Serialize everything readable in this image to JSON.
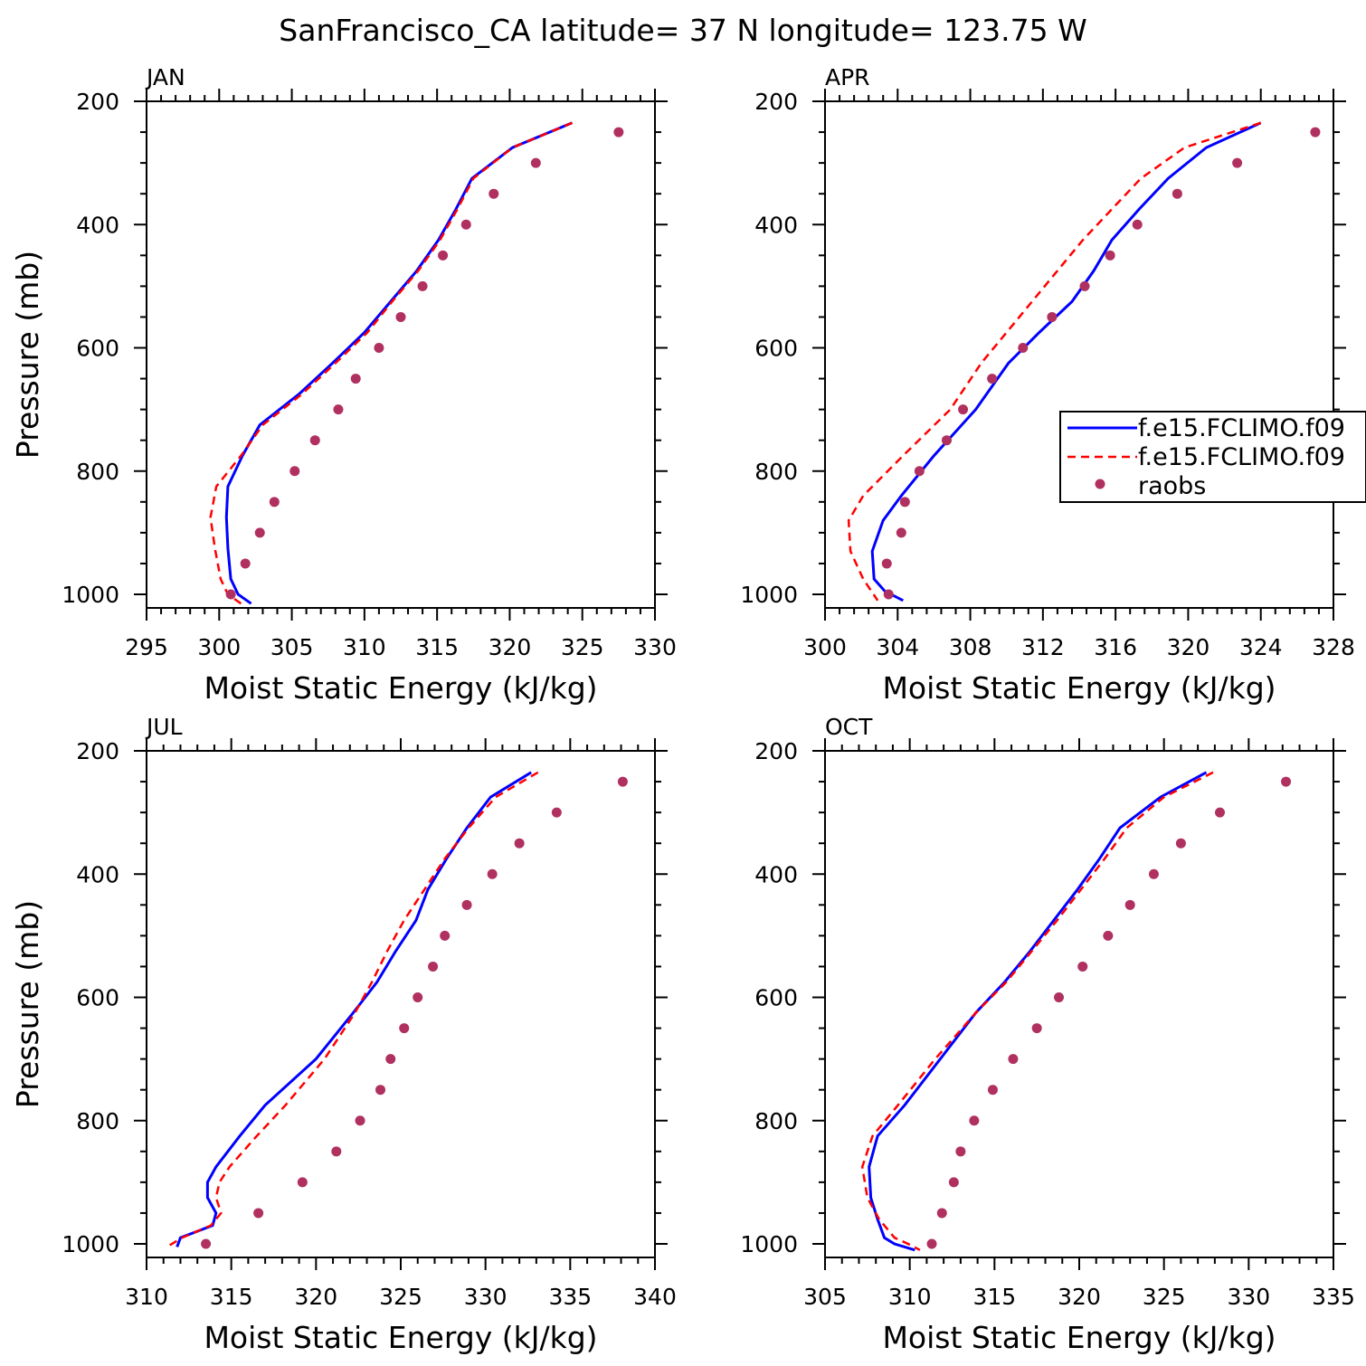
{
  "title": "SanFrancisco_CA  latitude= 37 N longitude= 123.75 W",
  "colors": {
    "model1": "#0000ff",
    "model2": "#ff0000",
    "raobs": "#b03060"
  },
  "legend": {
    "entries": [
      "f.e15.FCLIMO.f09",
      "f.e15.FCLIMO.f09",
      "raobs"
    ]
  },
  "chart_data": [
    {
      "type": "line",
      "title": "JAN",
      "xlabel": "Moist Static Energy (kJ/kg)",
      "ylabel": "Pressure (mb)",
      "xlim": [
        295,
        330
      ],
      "ylim": [
        1025,
        200
      ],
      "xticks": [
        295,
        300,
        305,
        310,
        315,
        320,
        325,
        330
      ],
      "yticks": [
        1000,
        800,
        600,
        400,
        200
      ],
      "series": [
        {
          "name": "f.e15.FCLIMO.f09",
          "style": "solid",
          "x": [
            324.3,
            320.2,
            317.4,
            316.3,
            315.1,
            313.6,
            311.8,
            310.0,
            307.8,
            305.5,
            302.8,
            301.6,
            300.6,
            300.5,
            300.6,
            300.8,
            301.3,
            302.2
          ],
          "y": [
            235,
            275,
            325,
            375,
            425,
            475,
            525,
            575,
            625,
            675,
            725,
            775,
            825,
            875,
            925,
            975,
            1000,
            1015
          ]
        },
        {
          "name": "f.e15.FCLIMO.f09",
          "style": "dashed",
          "x": [
            324.3,
            320.2,
            317.5,
            316.4,
            315.2,
            313.7,
            311.9,
            310.2,
            308.0,
            305.7,
            303.0,
            301.5,
            299.8,
            299.4,
            299.7,
            300.1,
            300.6,
            301.5
          ],
          "y": [
            235,
            275,
            325,
            375,
            425,
            475,
            525,
            575,
            625,
            675,
            725,
            775,
            825,
            875,
            925,
            975,
            1000,
            1015
          ]
        },
        {
          "name": "raobs",
          "style": "markers",
          "x": [
            327.5,
            321.8,
            318.9,
            317.0,
            315.4,
            314.0,
            312.5,
            311.0,
            309.4,
            308.2,
            306.6,
            305.2,
            303.8,
            302.8,
            301.8,
            300.8
          ],
          "y": [
            250,
            300,
            350,
            400,
            450,
            500,
            550,
            600,
            650,
            700,
            750,
            800,
            850,
            900,
            950,
            1000
          ]
        }
      ]
    },
    {
      "type": "line",
      "title": "APR",
      "xlabel": "Moist Static Energy (kJ/kg)",
      "ylabel": "",
      "xlim": [
        300,
        328
      ],
      "ylim": [
        1025,
        200
      ],
      "xticks": [
        300,
        304,
        308,
        312,
        316,
        320,
        324,
        328
      ],
      "yticks": [
        1000,
        800,
        600,
        400,
        200
      ],
      "series": [
        {
          "name": "f.e15.FCLIMO.f09",
          "style": "solid",
          "x": [
            324.0,
            321.0,
            318.9,
            317.3,
            315.8,
            314.8,
            313.6,
            311.8,
            310.1,
            308.3,
            306.0,
            304.2,
            303.2,
            302.6,
            302.7,
            303.3,
            304.3
          ],
          "y": [
            235,
            275,
            325,
            375,
            425,
            475,
            525,
            575,
            625,
            700,
            775,
            840,
            880,
            930,
            975,
            995,
            1010
          ]
        },
        {
          "name": "f.e15.FCLIMO.f09",
          "style": "dashed",
          "x": [
            324.0,
            319.8,
            317.4,
            315.8,
            314.2,
            312.8,
            311.4,
            310.0,
            308.6,
            306.9,
            304.3,
            302.1,
            301.3,
            301.4,
            302.1,
            302.9
          ],
          "y": [
            235,
            275,
            325,
            375,
            425,
            475,
            525,
            575,
            625,
            700,
            775,
            840,
            880,
            930,
            975,
            1010
          ]
        },
        {
          "name": "raobs",
          "style": "markers",
          "x": [
            327.0,
            322.7,
            319.4,
            317.2,
            315.7,
            314.3,
            312.5,
            310.9,
            309.2,
            307.6,
            306.7,
            305.2,
            304.4,
            304.2,
            303.4,
            303.5
          ],
          "y": [
            250,
            300,
            350,
            400,
            450,
            500,
            550,
            600,
            650,
            700,
            750,
            800,
            850,
            900,
            950,
            1000
          ]
        }
      ]
    },
    {
      "type": "line",
      "title": "JUL",
      "xlabel": "Moist Static Energy (kJ/kg)",
      "ylabel": "Pressure (mb)",
      "xlim": [
        310,
        340
      ],
      "ylim": [
        1025,
        200
      ],
      "xticks": [
        310,
        315,
        320,
        325,
        330,
        335,
        340
      ],
      "yticks": [
        1000,
        800,
        600,
        400,
        200
      ],
      "series": [
        {
          "name": "f.e15.FCLIMO.f09",
          "style": "solid",
          "x": [
            332.7,
            330.3,
            328.9,
            327.7,
            326.6,
            325.9,
            324.7,
            323.6,
            322.2,
            320.0,
            317.0,
            315.5,
            314.1,
            313.6,
            313.6,
            314.1,
            313.9,
            312.0,
            311.8
          ],
          "y": [
            235,
            275,
            325,
            375,
            425,
            475,
            525,
            575,
            625,
            700,
            775,
            825,
            875,
            900,
            925,
            950,
            970,
            990,
            1005
          ]
        },
        {
          "name": "f.e15.FCLIMO.f09",
          "style": "dashed",
          "x": [
            333.1,
            330.6,
            329.0,
            327.6,
            326.4,
            325.2,
            324.2,
            323.3,
            322.3,
            320.5,
            318.2,
            316.5,
            314.9,
            314.3,
            314.1,
            314.4,
            313.8,
            312.1,
            311.2
          ],
          "y": [
            235,
            275,
            325,
            375,
            425,
            475,
            525,
            575,
            625,
            700,
            775,
            825,
            875,
            900,
            925,
            950,
            970,
            990,
            1005
          ]
        },
        {
          "name": "raobs",
          "style": "markers",
          "x": [
            338.1,
            334.2,
            332.0,
            330.4,
            328.9,
            327.6,
            326.9,
            326.0,
            325.2,
            324.4,
            323.8,
            322.6,
            321.2,
            319.2,
            316.6,
            313.5
          ],
          "y": [
            250,
            300,
            350,
            400,
            450,
            500,
            550,
            600,
            650,
            700,
            750,
            800,
            850,
            900,
            950,
            1000
          ]
        }
      ]
    },
    {
      "type": "line",
      "title": "OCT",
      "xlabel": "Moist Static Energy (kJ/kg)",
      "ylabel": "",
      "xlim": [
        305,
        335
      ],
      "ylim": [
        1025,
        200
      ],
      "xticks": [
        305,
        310,
        315,
        320,
        325,
        330,
        335
      ],
      "yticks": [
        1000,
        800,
        600,
        400,
        200
      ],
      "series": [
        {
          "name": "f.e15.FCLIMO.f09",
          "style": "solid",
          "x": [
            327.5,
            324.8,
            322.4,
            321.2,
            319.9,
            318.5,
            317.1,
            315.6,
            313.9,
            311.8,
            309.7,
            308.1,
            307.6,
            307.7,
            308.1,
            308.5,
            309.1,
            310.3
          ],
          "y": [
            235,
            275,
            325,
            375,
            425,
            475,
            525,
            575,
            625,
            700,
            775,
            825,
            875,
            925,
            960,
            990,
            1000,
            1010
          ]
        },
        {
          "name": "f.e15.FCLIMO.f09",
          "style": "dashed",
          "x": [
            327.9,
            325.0,
            322.8,
            321.5,
            320.1,
            318.7,
            317.2,
            315.7,
            313.9,
            311.5,
            309.3,
            307.8,
            307.2,
            307.5,
            308.2,
            309.1,
            309.9,
            310.6
          ],
          "y": [
            235,
            275,
            325,
            375,
            425,
            475,
            525,
            575,
            625,
            700,
            775,
            825,
            875,
            925,
            960,
            990,
            1000,
            1010
          ]
        },
        {
          "name": "raobs",
          "style": "markers",
          "x": [
            332.2,
            328.3,
            326.0,
            324.4,
            323.0,
            321.7,
            320.2,
            318.8,
            317.5,
            316.1,
            314.9,
            313.8,
            313.0,
            312.6,
            311.9,
            311.3
          ],
          "y": [
            250,
            300,
            350,
            400,
            450,
            500,
            550,
            600,
            650,
            700,
            750,
            800,
            850,
            900,
            950,
            1000
          ]
        }
      ]
    }
  ]
}
